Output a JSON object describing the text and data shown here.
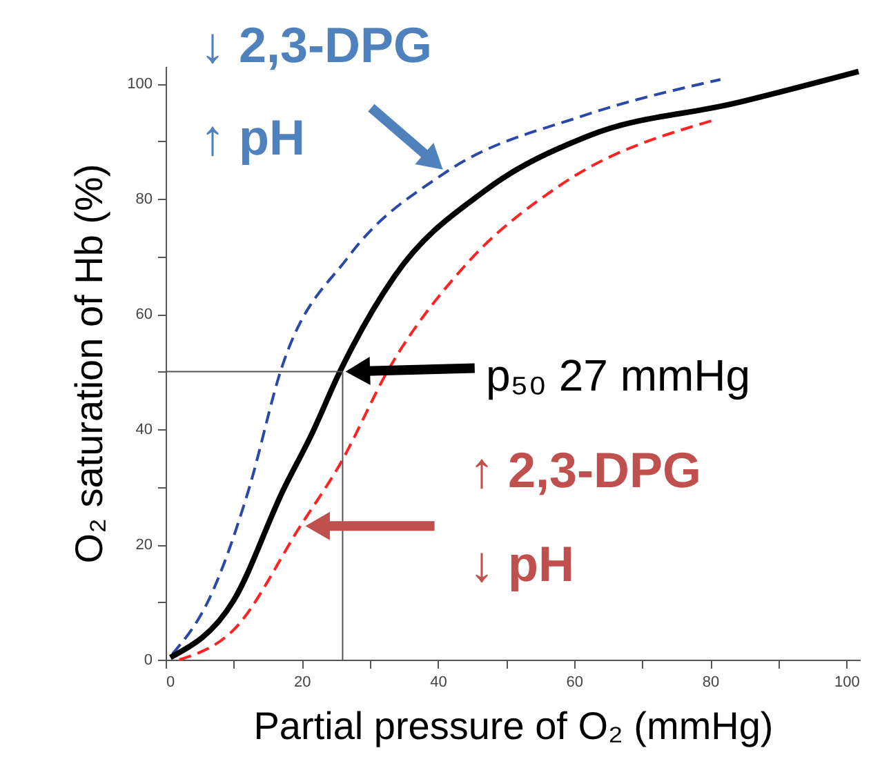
{
  "chart_data": {
    "type": "line",
    "xlabel": "Partial pressure of O₂ (mmHg)",
    "ylabel": "O₂ saturation of Hb (%)",
    "xlim": [
      0,
      102
    ],
    "ylim": [
      0,
      103
    ],
    "xticks": [
      0,
      {
        "value": 10,
        "label": null
      },
      20,
      {
        "value": 30,
        "label": null
      },
      40,
      {
        "value": 50,
        "label": null
      },
      60,
      {
        "value": 70,
        "label": null
      },
      80,
      {
        "value": 90,
        "label": null
      },
      100
    ],
    "yticks": [
      0,
      {
        "value": 10,
        "label": null
      },
      20,
      {
        "value": 30,
        "label": null
      },
      40,
      {
        "value": 50,
        "label": null
      },
      60,
      {
        "value": 70,
        "label": null
      },
      80,
      {
        "value": 90,
        "label": null
      },
      100
    ],
    "grid": false,
    "line_style": "solid",
    "series": [
      {
        "color": "#2a48a8",
        "line_style": "dashed",
        "x": [
          1,
          6.3,
          12.2,
          17,
          26.9,
          40.9,
          61.6,
          81.5
        ],
        "values": [
          1,
          10.3,
          29.5,
          50.5,
          70,
          84.4,
          94.5,
          100.7
        ]
      },
      {
        "color": "#000000",
        "x": [
          0.7,
          10,
          17.3,
          21.4,
          25.6,
          33.6,
          46.9,
          62.3,
          83.7,
          101.8
        ],
        "values": [
          0.4,
          10.3,
          29.5,
          39,
          50,
          66.5,
          81.4,
          91,
          96.6,
          102.1
        ]
      },
      {
        "color": "#ff2222",
        "line_style": "dashed",
        "x": [
          2,
          10,
          19.9,
          25.6,
          32.8,
          43.9,
          57.9,
          80.4
        ],
        "values": [
          0,
          5.2,
          23.4,
          33.9,
          50.5,
          68.3,
          82.3,
          93.6
        ]
      }
    ],
    "ref_lines": [
      {
        "axis": "x",
        "value": 26
      },
      {
        "axis": "y",
        "value": 50
      }
    ],
    "annotations": [
      "↓ 2,3-DPG",
      "↑ pH",
      "p₅₀ 27 mmHg",
      "↑ 2,3-DPG",
      "↓ pH"
    ]
  }
}
